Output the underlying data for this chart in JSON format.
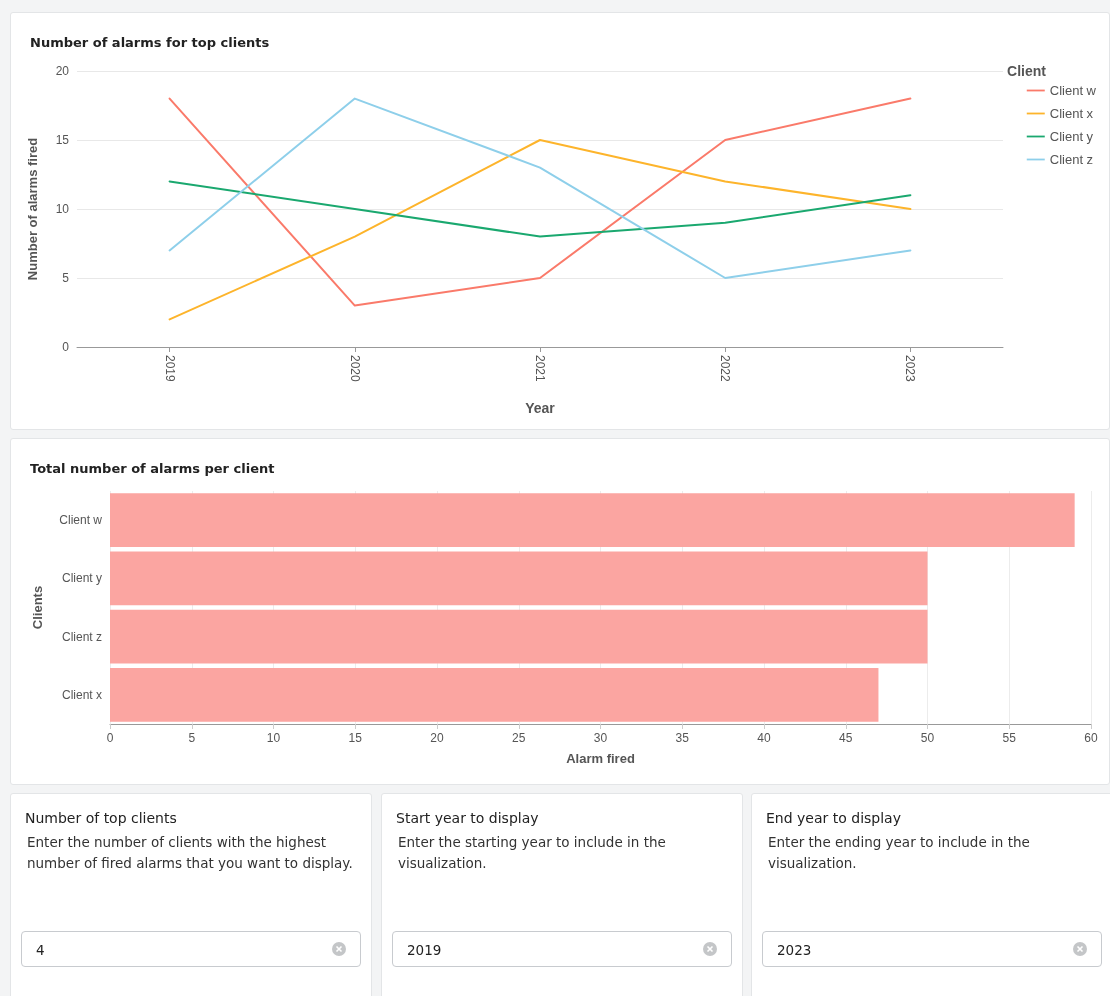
{
  "chart_data": [
    {
      "type": "line",
      "title": "Number of alarms for top clients",
      "xlabel": "Year",
      "ylabel": "Number of alarms fired",
      "legend_title": "Client",
      "categories": [
        "2019",
        "2020",
        "2021",
        "2022",
        "2023"
      ],
      "series": [
        {
          "name": "Client w",
          "color": "#fa7a6a",
          "values": [
            18,
            3,
            5,
            15,
            18
          ]
        },
        {
          "name": "Client x",
          "color": "#fdb42b",
          "values": [
            2,
            8,
            15,
            12,
            10
          ]
        },
        {
          "name": "Client y",
          "color": "#1aa86f",
          "values": [
            12,
            10,
            8,
            9,
            11
          ]
        },
        {
          "name": "Client z",
          "color": "#8ecfea",
          "values": [
            7,
            18,
            13,
            5,
            7
          ]
        }
      ],
      "ylim": [
        0,
        20
      ],
      "yticks": [
        0,
        5,
        10,
        15,
        20
      ],
      "grid": "y",
      "legend": "top right",
      "marker": "none",
      "line_style": "solid"
    },
    {
      "type": "bar",
      "orientation": "horizontal",
      "title": "Total number of alarms per client",
      "xlabel": "Alarm fired",
      "ylabel": "Clients",
      "categories": [
        "Client w",
        "Client y",
        "Client z",
        "Client x"
      ],
      "values": [
        59,
        50,
        50,
        47
      ],
      "color": "#fba5a1",
      "xlim": [
        0,
        60
      ],
      "xticks": [
        0,
        5,
        10,
        15,
        20,
        25,
        30,
        35,
        40,
        45,
        50,
        55,
        60
      ],
      "grid": "x"
    },
    {
      "type": "other",
      "title": "Number of  top clients",
      "subtitle": "Enter the number of clients with the highest number of fired alarms that you want to display.",
      "annotations": [
        "4"
      ]
    },
    {
      "type": "other",
      "title": "Start year to display",
      "subtitle": "Enter the starting year to include in the visualization.",
      "annotations": [
        "2019"
      ]
    },
    {
      "type": "other",
      "title": "End year to display",
      "subtitle": "Enter the ending year to include in the visualization.",
      "annotations": [
        "2023"
      ]
    }
  ]
}
